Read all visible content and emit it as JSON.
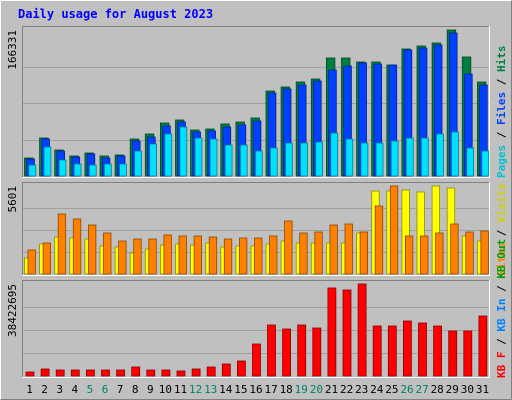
{
  "title": "Daily usage for August 2023",
  "chart_data": [
    {
      "type": "bar",
      "panel": "hits-files-pages",
      "ylabel": "166331",
      "ymax": 166331,
      "x": [
        1,
        2,
        3,
        4,
        5,
        6,
        7,
        8,
        9,
        10,
        11,
        12,
        13,
        14,
        15,
        16,
        17,
        18,
        19,
        20,
        21,
        22,
        23,
        24,
        25,
        26,
        27,
        28,
        29,
        30,
        31
      ],
      "series": [
        {
          "name": "Hits",
          "color": "#008040",
          "values": [
            20000,
            43000,
            30000,
            23000,
            26000,
            23000,
            24000,
            42000,
            48000,
            60000,
            64000,
            52000,
            54000,
            59000,
            61000,
            66000,
            97000,
            101000,
            107000,
            110000,
            135000,
            135000,
            130000,
            130000,
            127000,
            145000,
            148000,
            151000,
            166331,
            136000,
            107000
          ]
        },
        {
          "name": "Files",
          "color": "#0040ff",
          "values": [
            19000,
            42000,
            29000,
            22000,
            25000,
            21000,
            23000,
            40000,
            45000,
            57000,
            61000,
            50000,
            51000,
            56000,
            58000,
            63000,
            94000,
            99000,
            104000,
            108000,
            121000,
            125000,
            129000,
            128000,
            126000,
            143000,
            146000,
            149000,
            163000,
            116000,
            104000
          ]
        },
        {
          "name": "Pages",
          "color": "#00e0ff",
          "values": [
            13000,
            33000,
            18000,
            14000,
            13000,
            14000,
            14000,
            29000,
            37000,
            48000,
            56000,
            43000,
            42000,
            35000,
            35000,
            28000,
            32000,
            38000,
            38000,
            39000,
            49000,
            42000,
            38000,
            38000,
            40000,
            43000,
            43000,
            48000,
            50000,
            32000,
            28000
          ]
        }
      ]
    },
    {
      "type": "bar",
      "panel": "visits-sites",
      "ylabel": "5601",
      "ymax": 5601,
      "x": [
        1,
        2,
        3,
        4,
        5,
        6,
        7,
        8,
        9,
        10,
        11,
        12,
        13,
        14,
        15,
        16,
        17,
        18,
        19,
        20,
        21,
        22,
        23,
        24,
        25,
        26,
        27,
        28,
        29,
        30,
        31
      ],
      "series": [
        {
          "name": "Visits",
          "color": "#ffff00",
          "values": [
            1050,
            1900,
            2350,
            2300,
            2200,
            1800,
            1700,
            1350,
            1600,
            1850,
            1900,
            1850,
            1950,
            1750,
            1800,
            1800,
            1900,
            2100,
            1950,
            1950,
            2000,
            2000,
            2600,
            5300,
            5300,
            5350,
            5200,
            5580,
            5500,
            2400,
            2100
          ]
        },
        {
          "name": "Sites",
          "color": "#ff8000",
          "values": [
            1500,
            2000,
            3800,
            3500,
            3100,
            2600,
            2100,
            2250,
            2200,
            2500,
            2450,
            2400,
            2350,
            2200,
            2300,
            2300,
            2400,
            3400,
            2600,
            2650,
            3100,
            3200,
            2650,
            4300,
            5601,
            2450,
            2450,
            2600,
            3200,
            2650,
            2750
          ]
        }
      ]
    },
    {
      "type": "bar",
      "panel": "kbytes",
      "ylabel": "38422695",
      "ymax": 38422695,
      "x": [
        1,
        2,
        3,
        4,
        5,
        6,
        7,
        8,
        9,
        10,
        11,
        12,
        13,
        14,
        15,
        16,
        17,
        18,
        19,
        20,
        21,
        22,
        23,
        24,
        25,
        26,
        27,
        28,
        29,
        30,
        31
      ],
      "series": [
        {
          "name": "KBytes",
          "color": "#ff0000",
          "values": [
            1800000,
            2900000,
            2600000,
            2400000,
            2500000,
            2400000,
            2500000,
            3600000,
            2500000,
            2500000,
            2000000,
            3100000,
            3700000,
            5200000,
            6400000,
            13400000,
            21400000,
            19500000,
            21400000,
            20100000,
            36600000,
            35800000,
            38422695,
            20900000,
            20900000,
            23000000,
            22200000,
            20900000,
            19000000,
            19000000,
            25200000
          ]
        }
      ]
    }
  ],
  "right_legends": [
    [
      {
        "text": "Pages",
        "color": "#00c0d0"
      },
      {
        "text": " / ",
        "color": "#000000"
      },
      {
        "text": "Files",
        "color": "#0040ff"
      },
      {
        "text": " / ",
        "color": "#000000"
      },
      {
        "text": "Hits",
        "color": "#008040"
      }
    ],
    [
      {
        "text": "Sites",
        "color": "#ff8000"
      },
      {
        "text": " / ",
        "color": "#000000"
      },
      {
        "text": "Visits",
        "color": "#d0d000"
      }
    ],
    [
      {
        "text": "KB F",
        "color": "#ff0000"
      },
      {
        "text": " / ",
        "color": "#000000"
      },
      {
        "text": "KB In",
        "color": "#0080ff"
      },
      {
        "text": " / ",
        "color": "#000000"
      },
      {
        "text": "KB Out",
        "color": "#00a000"
      }
    ]
  ],
  "x_labels": [
    {
      "text": "1",
      "color": "#000000"
    },
    {
      "text": "2",
      "color": "#000000"
    },
    {
      "text": "3",
      "color": "#000000"
    },
    {
      "text": "4",
      "color": "#000000"
    },
    {
      "text": "5",
      "color": "#00806a"
    },
    {
      "text": "6",
      "color": "#00806a"
    },
    {
      "text": "7",
      "color": "#000000"
    },
    {
      "text": "8",
      "color": "#000000"
    },
    {
      "text": "9",
      "color": "#000000"
    },
    {
      "text": "10",
      "color": "#000000"
    },
    {
      "text": "11",
      "color": "#000000"
    },
    {
      "text": "12",
      "color": "#00806a"
    },
    {
      "text": "13",
      "color": "#00806a"
    },
    {
      "text": "14",
      "color": "#000000"
    },
    {
      "text": "15",
      "color": "#000000"
    },
    {
      "text": "16",
      "color": "#000000"
    },
    {
      "text": "17",
      "color": "#000000"
    },
    {
      "text": "18",
      "color": "#000000"
    },
    {
      "text": "19",
      "color": "#00806a"
    },
    {
      "text": "20",
      "color": "#00806a"
    },
    {
      "text": "21",
      "color": "#000000"
    },
    {
      "text": "22",
      "color": "#000000"
    },
    {
      "text": "23",
      "color": "#000000"
    },
    {
      "text": "24",
      "color": "#000000"
    },
    {
      "text": "25",
      "color": "#000000"
    },
    {
      "text": "26",
      "color": "#00806a"
    },
    {
      "text": "27",
      "color": "#00806a"
    },
    {
      "text": "28",
      "color": "#000000"
    },
    {
      "text": "29",
      "color": "#000000"
    },
    {
      "text": "30",
      "color": "#000000"
    },
    {
      "text": "31",
      "color": "#000000"
    }
  ],
  "colors": {
    "frame": "#c0c0c0",
    "plot_bg": "#c0c0c0",
    "title": "#0000ff"
  }
}
